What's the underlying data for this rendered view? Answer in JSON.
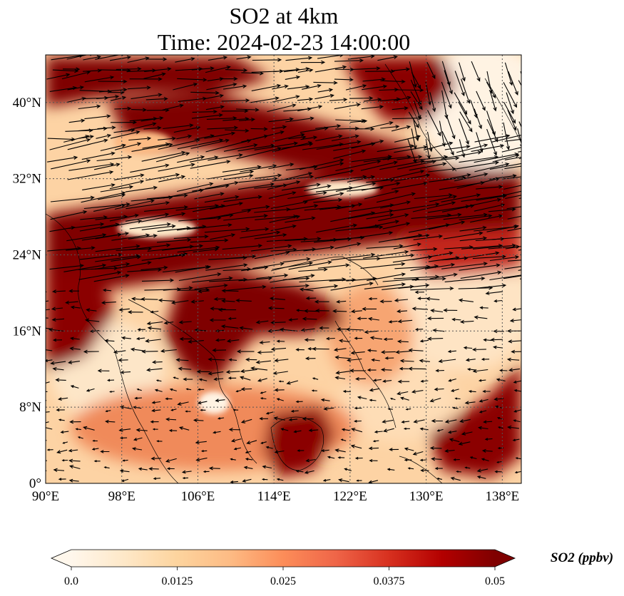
{
  "chart_data": {
    "type": "heatmap",
    "title_line1": "SO2 at 4km",
    "title_line2": "Time: 2024-02-23 14:00:00",
    "xlabel": "",
    "ylabel": "",
    "xlim": [
      90,
      140
    ],
    "ylim": [
      0,
      45
    ],
    "x_ticks": [
      90,
      98,
      106,
      114,
      122,
      130,
      138
    ],
    "x_tick_labels": [
      "90°E",
      "98°E",
      "106°E",
      "114°E",
      "122°E",
      "130°E",
      "138°E"
    ],
    "y_ticks": [
      0,
      8,
      16,
      24,
      32,
      40
    ],
    "y_tick_labels": [
      "0°",
      "8°N",
      "16°N",
      "24°N",
      "32°N",
      "40°N"
    ],
    "grid": true,
    "colorbar": {
      "label": "SO2 (ppbv)",
      "min": 0.0,
      "max": 0.05,
      "ticks": [
        0.0,
        0.0125,
        0.025,
        0.0375,
        0.05
      ],
      "tick_labels": [
        "0.0",
        "0.0125",
        "0.025",
        "0.0375",
        "0.05"
      ],
      "extend": "both",
      "colormap": [
        "#fff7ec",
        "#fee8c8",
        "#fdd49e",
        "#fdbb84",
        "#fc8d59",
        "#ef6548",
        "#d7301f",
        "#b30000",
        "#7f0000"
      ]
    },
    "regions": [
      {
        "lon": [
          90,
          140
        ],
        "lat": [
          18,
          31
        ],
        "so2": 0.05
      },
      {
        "lon": [
          94,
          131
        ],
        "lat": [
          30,
          41
        ],
        "so2": 0.05
      },
      {
        "lon": [
          90,
          120
        ],
        "lat": [
          41,
          45
        ],
        "so2": 0.05
      },
      {
        "lon": [
          100,
          122
        ],
        "lat": [
          12,
          18
        ],
        "so2": 0.05
      },
      {
        "lon": [
          112,
          120
        ],
        "lat": [
          2,
          10
        ],
        "so2": 0.05
      },
      {
        "lon": [
          131,
          140
        ],
        "lat": [
          2,
          12
        ],
        "so2": 0.05
      },
      {
        "lon": [
          118,
          140
        ],
        "lat": [
          10,
          18
        ],
        "so2": 0.01
      },
      {
        "lon": [
          130,
          140
        ],
        "lat": [
          34,
          45
        ],
        "so2": 0.006
      }
    ],
    "wind_vectors": "quiver arrows across domain; predominantly eastward in 20–32°N band, westward over 4–16°N"
  }
}
